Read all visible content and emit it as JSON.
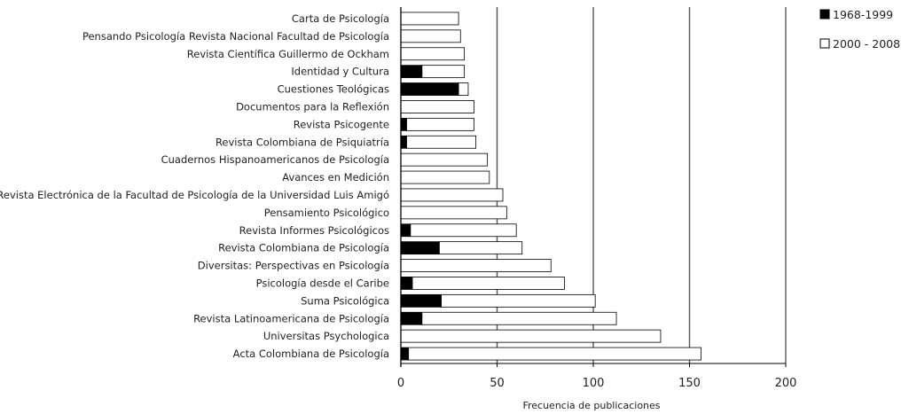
{
  "chart_data": {
    "type": "bar",
    "orientation": "horizontal",
    "stacked": true,
    "title": "",
    "xlabel": "Frecuencia de publicaciones",
    "ylabel": "",
    "xlim": [
      0,
      200
    ],
    "xticks": [
      0,
      50,
      100,
      150,
      200
    ],
    "grid": "vertical-major",
    "legend_position": "top-right",
    "categories": [
      "Carta de Psicología",
      "Pensando Psicología Revista Nacional Facultad de Psicología",
      "Revista Científica Guillermo de Ockham",
      "Identidad y Cultura",
      "Cuestiones Teológicas",
      "Documentos para la Reflexión",
      "Revista Psicogente",
      "Revista Colombiana de Psiquiatría",
      "Cuadernos Hispanoamericanos de Psicología",
      "Avances en Medición",
      "Revista Electrónica de la Facultad de Psicología de la Universidad Luis Amigó",
      "Pensamiento Psicológico",
      "Revista Informes Psicológicos",
      "Revista Colombiana de Psicología",
      "Diversitas: Perspectivas en Psicología",
      "Psicología desde el Caribe",
      "Suma Psicológica",
      "Revista Latinoamericana de Psicología",
      "Universitas Psychologica",
      "Acta Colombiana de Psicología"
    ],
    "series": [
      {
        "name": "1968-1999",
        "color": "#000000",
        "values": [
          0,
          0,
          0,
          11,
          30,
          0,
          3,
          3,
          0,
          0,
          0,
          0,
          5,
          20,
          0,
          6,
          21,
          11,
          0,
          4
        ]
      },
      {
        "name": "2000 - 2008",
        "color": "#ffffff",
        "values": [
          30,
          31,
          33,
          22,
          5,
          38,
          35,
          36,
          45,
          46,
          53,
          55,
          55,
          43,
          78,
          79,
          80,
          101,
          135,
          152
        ]
      }
    ]
  }
}
